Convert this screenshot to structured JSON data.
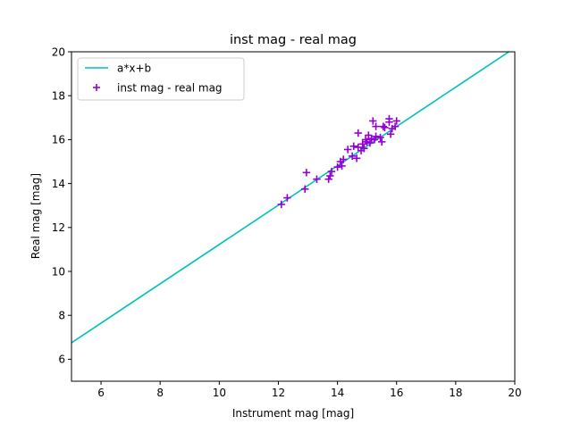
{
  "chart_data": {
    "type": "scatter",
    "title": "inst mag - real mag",
    "xlabel": "Instrument mag [mag]",
    "ylabel": "Real mag [mag]",
    "xlim": [
      5,
      20
    ],
    "ylim": [
      5,
      20
    ],
    "xticks": [
      6,
      8,
      10,
      12,
      14,
      16,
      18,
      20
    ],
    "yticks": [
      6,
      8,
      10,
      12,
      14,
      16,
      18,
      20
    ],
    "grid": false,
    "legend_position": "top-left",
    "series": [
      {
        "name": "a*x+b",
        "kind": "line",
        "color": "#00bfbf",
        "x": [
          5,
          19.8
        ],
        "y": [
          6.75,
          20.0
        ]
      },
      {
        "name": "inst mag - real mag",
        "kind": "scatter",
        "marker": "+",
        "color": "#9400d3",
        "points": [
          [
            12.1,
            13.05
          ],
          [
            12.3,
            13.35
          ],
          [
            12.9,
            13.75
          ],
          [
            12.95,
            14.5
          ],
          [
            13.3,
            14.2
          ],
          [
            13.7,
            14.2
          ],
          [
            13.75,
            14.35
          ],
          [
            13.8,
            14.55
          ],
          [
            14.0,
            14.75
          ],
          [
            14.1,
            15.0
          ],
          [
            14.15,
            14.8
          ],
          [
            14.2,
            15.1
          ],
          [
            14.35,
            15.55
          ],
          [
            14.5,
            15.25
          ],
          [
            14.55,
            15.7
          ],
          [
            14.65,
            15.15
          ],
          [
            14.7,
            15.65
          ],
          [
            14.7,
            16.3
          ],
          [
            14.8,
            15.5
          ],
          [
            14.85,
            15.8
          ],
          [
            14.9,
            15.6
          ],
          [
            14.95,
            16.0
          ],
          [
            15.0,
            15.9
          ],
          [
            15.05,
            16.2
          ],
          [
            15.1,
            15.85
          ],
          [
            15.15,
            16.05
          ],
          [
            15.2,
            16.85
          ],
          [
            15.25,
            16.0
          ],
          [
            15.3,
            16.15
          ],
          [
            15.3,
            16.6
          ],
          [
            15.45,
            16.1
          ],
          [
            15.5,
            15.9
          ],
          [
            15.55,
            16.6
          ],
          [
            15.6,
            16.55
          ],
          [
            15.75,
            16.8
          ],
          [
            15.75,
            16.95
          ],
          [
            15.8,
            16.25
          ],
          [
            15.85,
            16.5
          ],
          [
            15.95,
            16.6
          ],
          [
            16.0,
            16.85
          ]
        ]
      }
    ]
  }
}
